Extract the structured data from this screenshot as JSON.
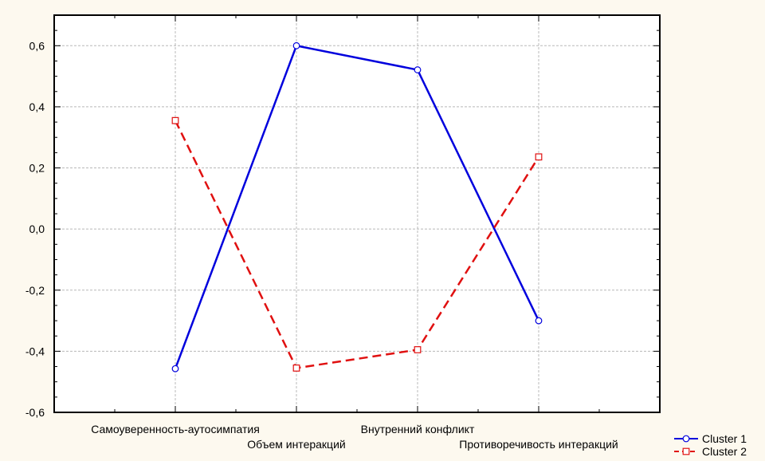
{
  "chart_data": {
    "type": "line",
    "title": "",
    "xlabel": "",
    "ylabel": "",
    "categories": [
      "Самоуверенность-аутосимпатия",
      "Объем интеракций",
      "Внутренний конфликт",
      "Противоречивость интеракций"
    ],
    "ylim": [
      -0.6,
      0.7
    ],
    "yticks": [
      "-0,6",
      "-0,4",
      "-0,2",
      "0,0",
      "0,2",
      "0,4",
      "0,6"
    ],
    "grid": true,
    "legend_position": "bottom-right",
    "series": [
      {
        "name": "Cluster  1",
        "values": [
          -0.457,
          0.6,
          0.521,
          -0.3
        ],
        "color": "#0000dd",
        "marker": "circle",
        "dash": "solid"
      },
      {
        "name": "Cluster  2",
        "values": [
          0.355,
          -0.455,
          -0.395,
          0.236
        ],
        "color": "#e01010",
        "marker": "square",
        "dash": "dashed"
      }
    ]
  },
  "colors": {
    "page_background": "#fdf9ef",
    "plot_background": "#ffffff",
    "grid": "#b8b8b8"
  }
}
